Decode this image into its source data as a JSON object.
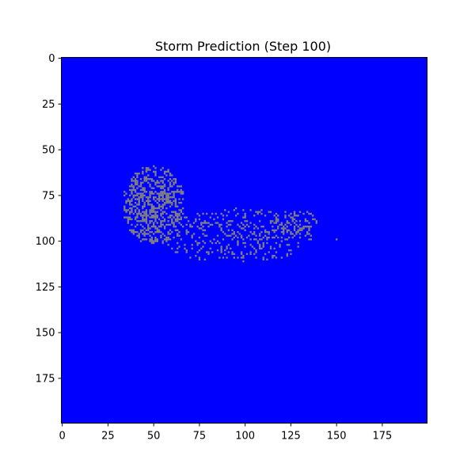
{
  "chart_data": {
    "type": "heatmap",
    "title": "Storm Prediction (Step 100)",
    "xlabel": "",
    "ylabel": "",
    "grid_size": [
      200,
      200
    ],
    "xlim": [
      0,
      200
    ],
    "ylim": [
      200,
      0
    ],
    "y_axis_direction": "downward",
    "x_ticks": [
      0,
      25,
      50,
      75,
      100,
      125,
      150,
      175
    ],
    "y_ticks": [
      0,
      25,
      50,
      75,
      100,
      125,
      150,
      175
    ],
    "grid": false,
    "colors": {
      "background": "#0000ff",
      "storm_cell": "#808080"
    },
    "storm_regions": [
      {
        "name": "dense-core",
        "center": [
          50,
          80
        ],
        "radius": [
          17,
          22
        ],
        "density": 0.55
      },
      {
        "name": "tail-band",
        "center": [
          95,
          97
        ],
        "radius": [
          42,
          15
        ],
        "density": 0.22
      },
      {
        "name": "right-tail",
        "center": [
          128,
          90
        ],
        "radius": [
          14,
          7
        ],
        "density": 0.3
      }
    ],
    "isolated_cells": [
      [
        150,
        99
      ]
    ]
  }
}
